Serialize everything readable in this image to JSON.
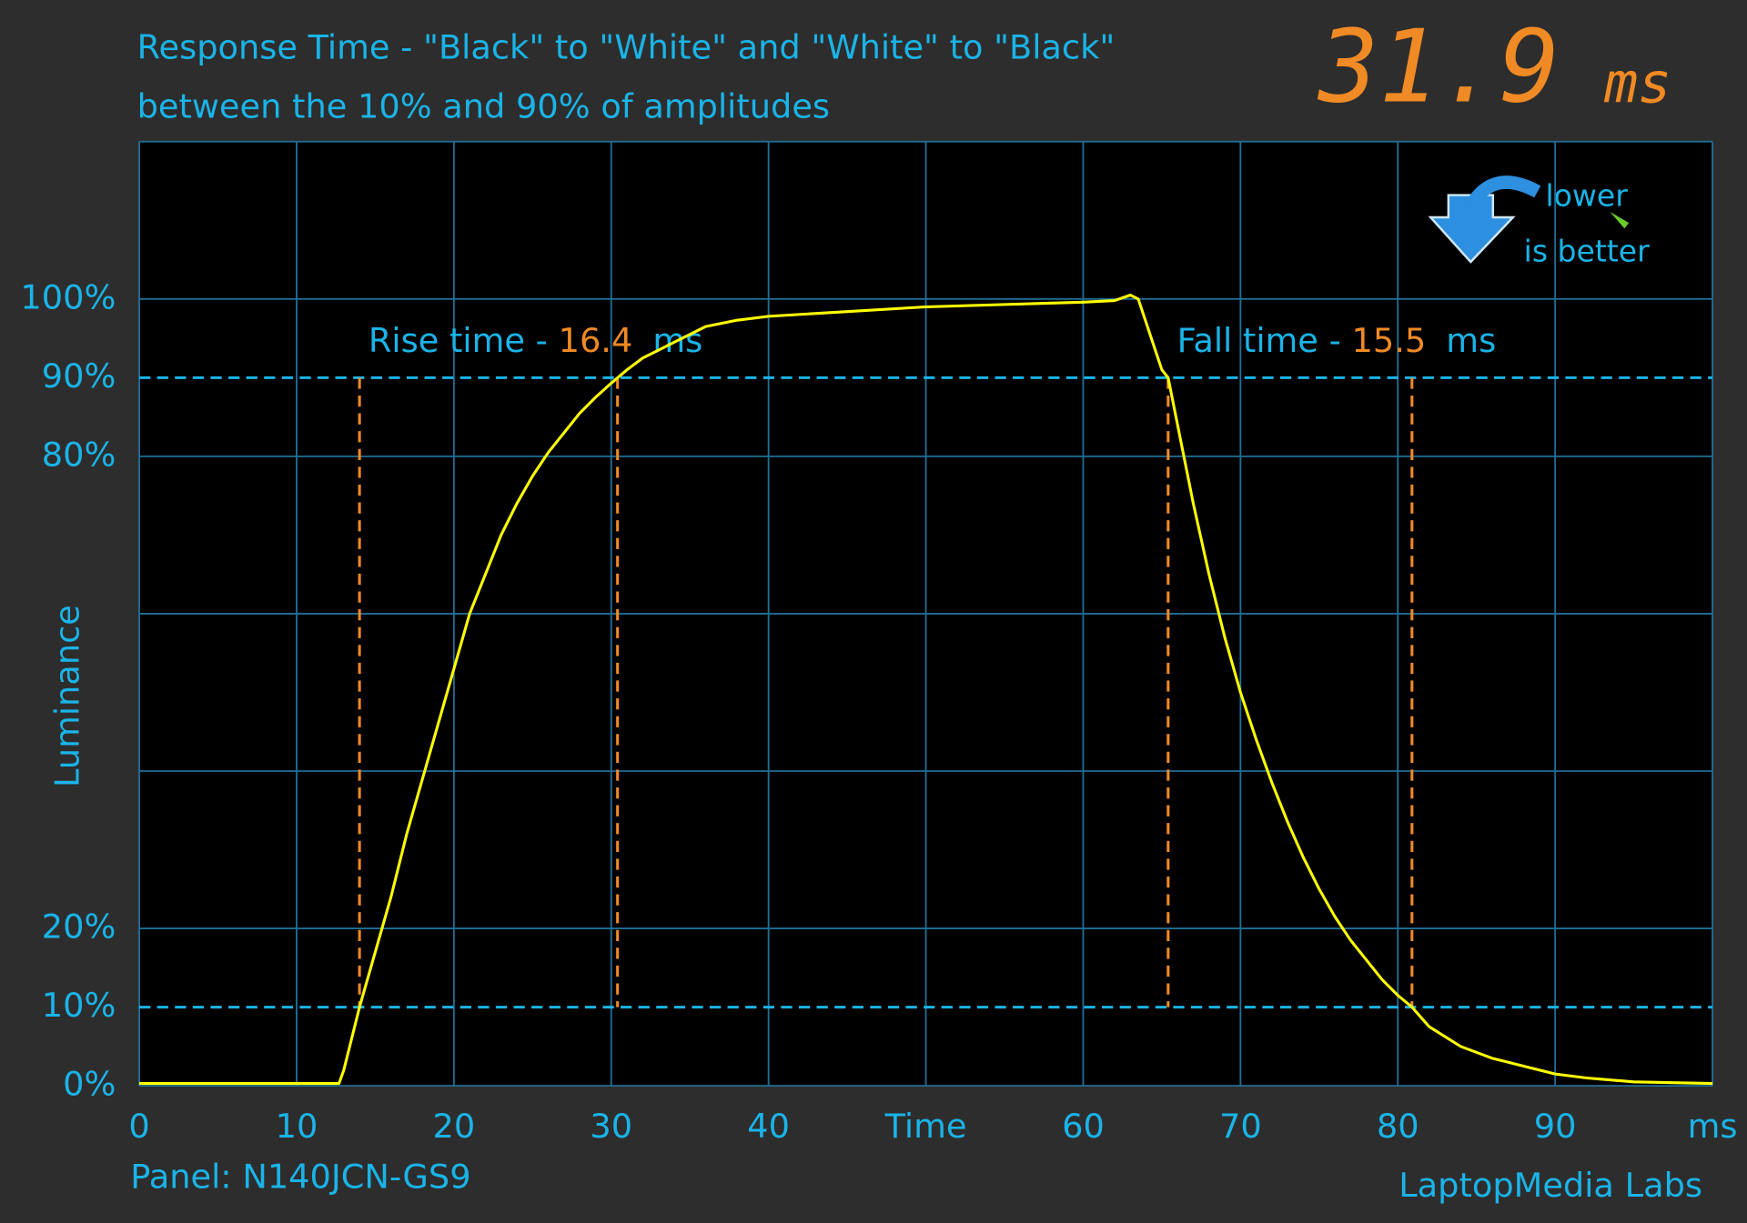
{
  "chart_data": {
    "type": "line",
    "title": "Response Time - \"Black\" to \"White\" and \"White\" to \"Black\"",
    "subtitle": "between the 10% and 90% of amplitudes",
    "y_label": "Luminance",
    "color": "#ffff00",
    "x": [
      0,
      12.7,
      13,
      14,
      15,
      16,
      17,
      18,
      19,
      20,
      21,
      22,
      23,
      24,
      25,
      26,
      27,
      28,
      29,
      30,
      31,
      32,
      33,
      34,
      35,
      36,
      38,
      40,
      45,
      50,
      55,
      60,
      62,
      63,
      63.5,
      64,
      65,
      65.4,
      66,
      67,
      68,
      69,
      70,
      71,
      72,
      73,
      74,
      75,
      76,
      77,
      78,
      79,
      80,
      80.9,
      82,
      84,
      86,
      88,
      90,
      92,
      95,
      100
    ],
    "values": [
      0.3,
      0.3,
      2,
      10,
      17,
      24,
      32,
      39,
      46,
      53,
      60,
      65,
      70,
      74,
      77.5,
      80.5,
      83,
      85.5,
      87.5,
      89.3,
      91,
      92.5,
      93.5,
      94.5,
      95.5,
      96.5,
      97.3,
      97.8,
      98.4,
      99,
      99.3,
      99.6,
      99.8,
      100.5,
      100,
      97,
      91,
      90,
      84,
      74,
      65,
      57,
      50,
      44,
      38.5,
      33.5,
      29,
      25,
      21.5,
      18.5,
      16,
      13.5,
      11.5,
      10,
      7.5,
      5,
      3.5,
      2.5,
      1.5,
      1,
      0.5,
      0.3
    ],
    "xlim": [
      0,
      100
    ],
    "ylim": [
      0,
      120
    ],
    "xticks": [
      0,
      10,
      20,
      30,
      40,
      {
        "value": 50,
        "label": "Time"
      },
      60,
      70,
      80,
      90,
      {
        "value": 100,
        "label": "ms"
      }
    ],
    "yticks": [
      {
        "value": 0,
        "label": "0%"
      },
      {
        "value": 10,
        "label": "10%"
      },
      {
        "value": 20,
        "label": "20%"
      },
      {
        "value": 80,
        "label": "80%"
      },
      {
        "value": 90,
        "label": "90%"
      },
      {
        "value": 100,
        "label": "100%"
      }
    ],
    "grid_x": [
      0,
      10,
      20,
      30,
      40,
      50,
      60,
      70,
      80,
      90,
      100
    ],
    "grid_y": [
      0,
      20,
      40,
      60,
      80,
      100,
      120
    ],
    "threshold_lines": [
      10,
      90
    ],
    "annotations": [
      {
        "label": "Rise time - ",
        "value": 16.4,
        "unit": "ms",
        "start": 14,
        "end": 30.4
      },
      {
        "label": "Fall time - ",
        "value": 15.5,
        "unit": "ms",
        "start": 65.4,
        "end": 80.9
      }
    ],
    "result": {
      "value": 31.9,
      "unit": "ms"
    },
    "badge": {
      "line1": "lower",
      "line2": "is better"
    },
    "panel": "Panel: N140JCN-GS9",
    "credit": "LaptopMedia Labs"
  }
}
